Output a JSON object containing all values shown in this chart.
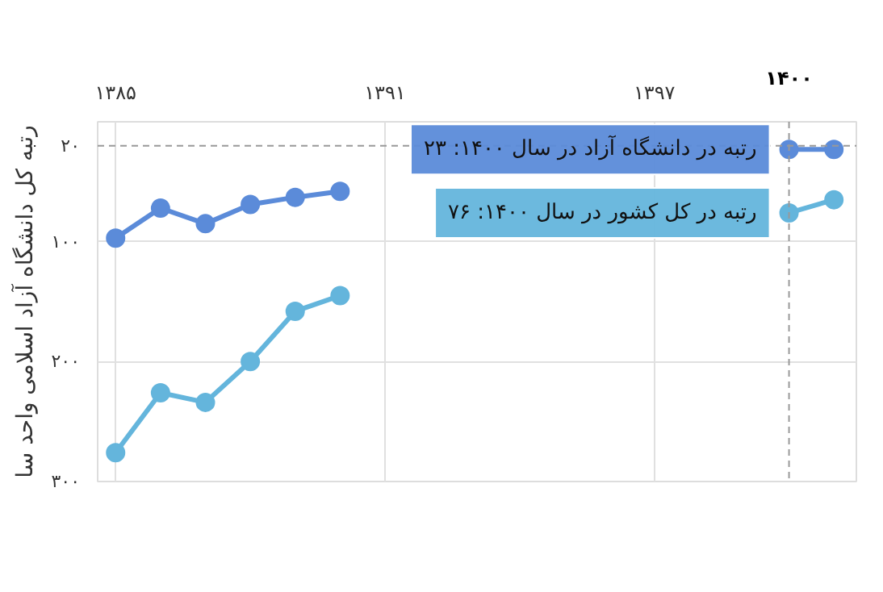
{
  "chart_data": {
    "type": "line",
    "ylabel": "رتبه کل دانشگاه آزاد اسلامی واحد سا",
    "x": [
      1385,
      1386,
      1387,
      1388,
      1389,
      1390,
      1391,
      1392,
      1393,
      1394,
      1395,
      1396,
      1397,
      1398,
      1399,
      1400,
      1401
    ],
    "series": [
      {
        "color": "#5b8bd9",
        "values": [
          97,
          72,
          85,
          69,
          63,
          58,
          null,
          null,
          null,
          null,
          null,
          null,
          null,
          null,
          null,
          23,
          23
        ]
      },
      {
        "color": "#64b5dc",
        "values": [
          276,
          226,
          234,
          200,
          158,
          145,
          null,
          null,
          null,
          null,
          null,
          null,
          null,
          null,
          null,
          76,
          65
        ]
      }
    ],
    "xlim": [
      1384.6,
      1401.5
    ],
    "ylim": [
      300,
      0
    ],
    "xticks": [
      {
        "value": 1385,
        "label": "۱۳۸۵"
      },
      {
        "value": 1391,
        "label": "۱۳۹۱"
      },
      {
        "value": 1397,
        "label": "۱۳۹۷"
      }
    ],
    "yticks": [
      {
        "value": 100,
        "label": "۱۰۰"
      },
      {
        "value": 200,
        "label": "۲۰۰"
      },
      {
        "value": 300,
        "label": "۳۰۰"
      }
    ],
    "ref_lines": [
      {
        "axis": "y",
        "value": 20,
        "label": "۲۰",
        "line_style": "dashed",
        "color": "#999999"
      },
      {
        "axis": "x",
        "value": 1400,
        "label": "۱۴۰۰",
        "line_style": "dashed",
        "color": "#999999"
      }
    ],
    "annotations": [
      {
        "text": "رتبه در دانشگاه آزاد در سال ۱۴۰۰: ۲۳",
        "x": 1400,
        "y": 23
      },
      {
        "text": "رتبه در کل کشور در سال ۱۴۰۰: ۷۶",
        "x": 1400,
        "y": 76
      }
    ],
    "grid": true,
    "marker": "circle",
    "line_style": "solid"
  }
}
